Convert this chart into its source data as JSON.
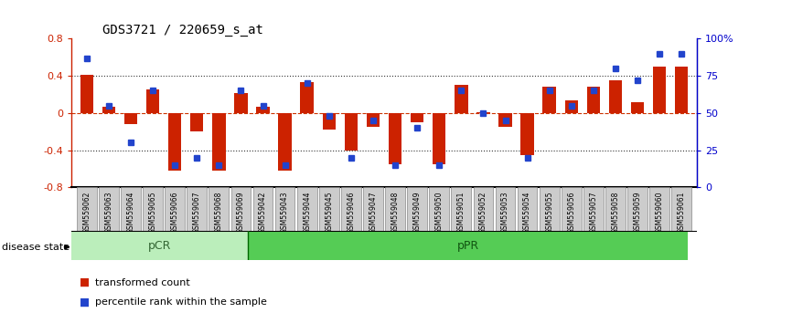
{
  "title": "GDS3721 / 220659_s_at",
  "samples": [
    "GSM559062",
    "GSM559063",
    "GSM559064",
    "GSM559065",
    "GSM559066",
    "GSM559067",
    "GSM559068",
    "GSM559069",
    "GSM559042",
    "GSM559043",
    "GSM559044",
    "GSM559045",
    "GSM559046",
    "GSM559047",
    "GSM559048",
    "GSM559049",
    "GSM559050",
    "GSM559051",
    "GSM559052",
    "GSM559053",
    "GSM559054",
    "GSM559055",
    "GSM559056",
    "GSM559057",
    "GSM559058",
    "GSM559059",
    "GSM559060",
    "GSM559061"
  ],
  "transformed_count": [
    0.41,
    0.07,
    -0.12,
    0.25,
    -0.62,
    -0.2,
    -0.62,
    0.22,
    0.07,
    -0.62,
    0.33,
    -0.18,
    -0.4,
    -0.15,
    -0.55,
    -0.1,
    -0.55,
    0.3,
    0.01,
    -0.15,
    -0.45,
    0.28,
    0.14,
    0.28,
    0.35,
    0.12,
    0.5,
    0.5
  ],
  "percentile_rank": [
    87,
    55,
    30,
    65,
    15,
    20,
    15,
    65,
    55,
    15,
    70,
    48,
    20,
    45,
    15,
    40,
    15,
    65,
    50,
    45,
    20,
    65,
    55,
    65,
    80,
    72,
    90,
    90
  ],
  "pCR_count": 8,
  "pPR_count": 20,
  "ylim_left": [
    -0.8,
    0.8
  ],
  "ylim_right": [
    0,
    100
  ],
  "yticks_left": [
    -0.8,
    -0.4,
    0.0,
    0.4,
    0.8
  ],
  "yticks_right": [
    0,
    25,
    50,
    75,
    100
  ],
  "ytick_labels_right": [
    "0",
    "25",
    "50",
    "75",
    "100%"
  ],
  "ytick_labels_left": [
    "-0.8",
    "-0.4",
    "0",
    "0.4",
    "0.8"
  ],
  "bar_color": "#cc2200",
  "dot_color": "#2244cc",
  "zero_line_color": "#cc3300",
  "dotted_line_color": "#333333",
  "bg_color": "#ffffff",
  "pCR_color": "#bbeebb",
  "pPR_color": "#55cc55",
  "tick_bg_color": "#cccccc",
  "tick_border_color": "#888888",
  "label_bar": "transformed count",
  "label_dot": "percentile rank within the sample",
  "disease_state_label": "disease state"
}
